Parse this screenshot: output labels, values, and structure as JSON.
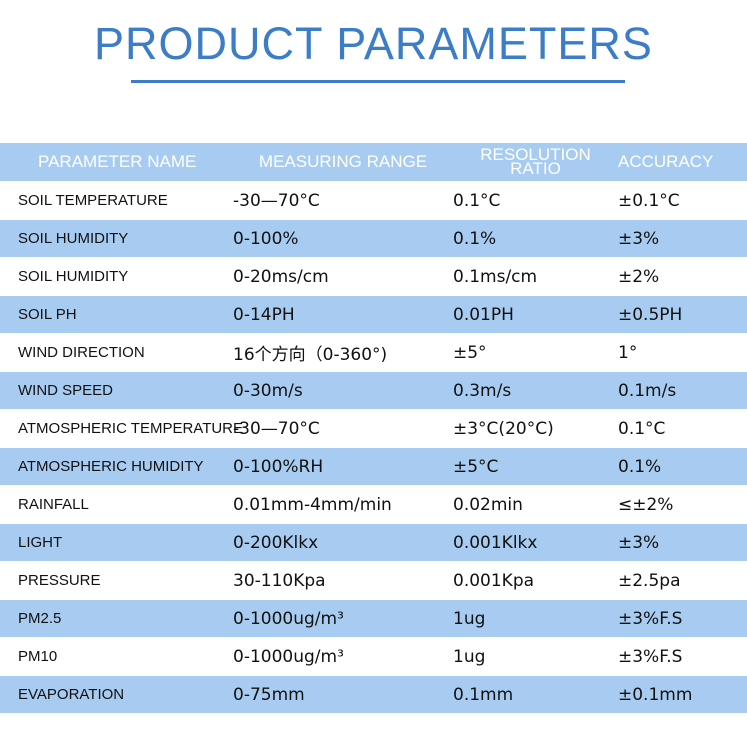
{
  "header": {
    "title": "PRODUCT PARAMETERS"
  },
  "table": {
    "headers": [
      "PARAMETER NAME",
      "MEASURING RANGE",
      "RESOLUTION RATIO",
      "ACCURACY"
    ],
    "rows": [
      [
        "SOIL TEMPERATURE",
        "-30—70°C",
        "0.1°C",
        "±0.1°C"
      ],
      [
        "SOIL HUMIDITY",
        "0-100%",
        "0.1%",
        "±3%"
      ],
      [
        "SOIL HUMIDITY",
        "0-20ms/cm",
        "0.1ms/cm",
        "±2%"
      ],
      [
        "SOIL PH",
        "0-14PH",
        "0.01PH",
        "±0.5PH"
      ],
      [
        "WIND DIRECTION",
        "16个方向（0-360°)",
        "±5°",
        "1°"
      ],
      [
        "WIND SPEED",
        "0-30m/s",
        "0.3m/s",
        "0.1m/s"
      ],
      [
        "ATMOSPHERIC TEMPERATURE",
        "-30—70°C",
        "±3°C(20°C)",
        "0.1°C"
      ],
      [
        "ATMOSPHERIC HUMIDITY",
        "0-100%RH",
        "±5°C",
        "0.1%"
      ],
      [
        "RAINFALL",
        "0.01mm-4mm/min",
        "0.02min",
        "≤±2%"
      ],
      [
        "LIGHT",
        "0-200Klkx",
        "0.001Klkx",
        "±3%"
      ],
      [
        "PRESSURE",
        "30-110Kpa",
        "0.001Kpa",
        "±2.5pa"
      ],
      [
        "PM2.5",
        "0-1000ug/m³",
        "1ug",
        "±3%F.S"
      ],
      [
        "PM10",
        "0-1000ug/m³",
        "1ug",
        "±3%F.S"
      ],
      [
        "EVAPORATION",
        "0-75mm",
        "0.1mm",
        "±0.1mm"
      ]
    ]
  }
}
